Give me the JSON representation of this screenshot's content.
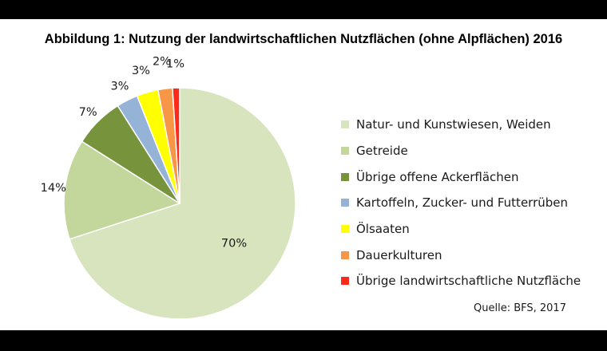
{
  "chart_data": {
    "type": "pie",
    "title": "Abbildung 1: Nutzung der landwirtschaftlichen Nutzflächen (ohne Alpflächen) 2016",
    "categories": [
      "Natur- und Kunstwiesen, Weiden",
      "Getreide",
      "Übrige offene Ackerflächen",
      "Kartoffeln, Zucker- und Futterrüben",
      "Ölsaaten",
      "Dauerkulturen",
      "Übrige landwirtschaftliche Nutzfläche"
    ],
    "values": [
      70,
      14,
      7,
      3,
      3,
      2,
      1
    ],
    "value_labels": [
      "70%",
      "14%",
      "7%",
      "3%",
      "3%",
      "2%",
      "1%"
    ],
    "colors": [
      "#d7e4bd",
      "#c3d69b",
      "#77933c",
      "#95b3d7",
      "#ffff00",
      "#f79646",
      "#ff2a1a"
    ],
    "legend_position": "right",
    "source": "Quelle: BFS, 2017"
  }
}
